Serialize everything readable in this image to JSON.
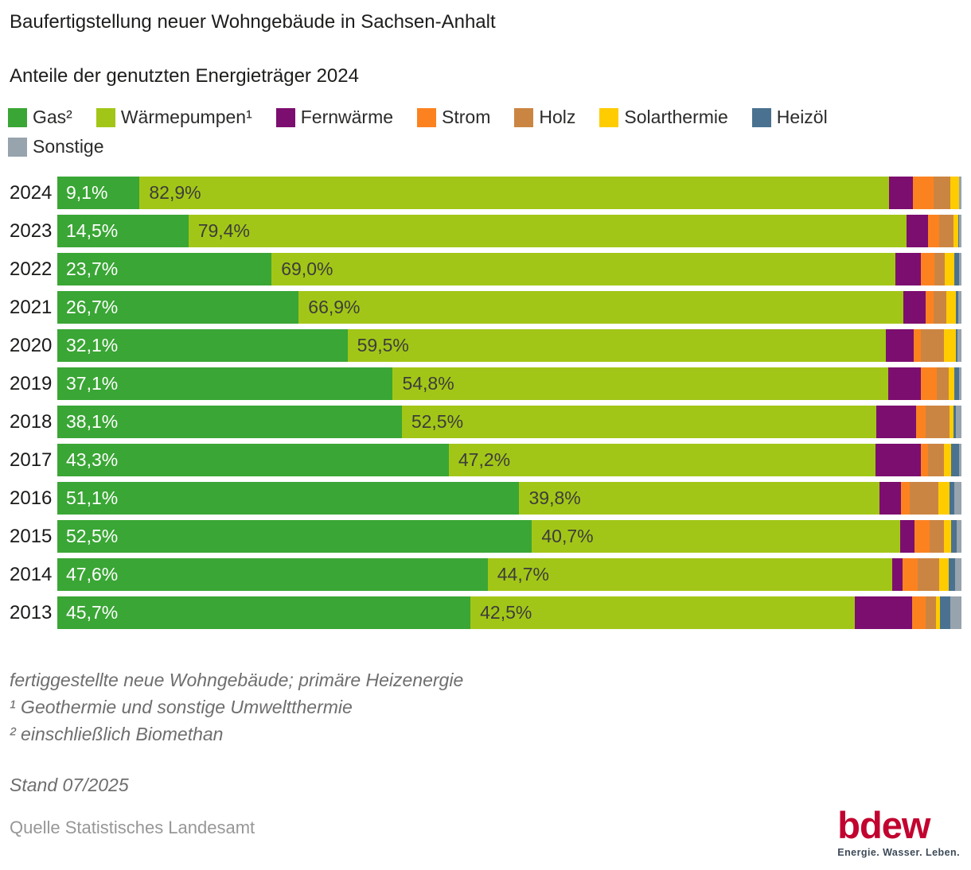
{
  "title": "Baufertigstellung neuer Wohngebäude in Sachsen-Anhalt",
  "subtitle": "Anteile der genutzten Energieträger 2024",
  "legend": [
    {
      "label": "Gas²",
      "color": "#3aa635"
    },
    {
      "label": "Wärmepumpen¹",
      "color": "#a2c617"
    },
    {
      "label": "Fernwärme",
      "color": "#7c0e6f"
    },
    {
      "label": "Strom",
      "color": "#fc8220"
    },
    {
      "label": "Holz",
      "color": "#cb8542"
    },
    {
      "label": "Solarthermie",
      "color": "#ffcc00"
    },
    {
      "label": "Heizöl",
      "color": "#4a7290"
    },
    {
      "label": "Sonstige",
      "color": "#97a3ad"
    }
  ],
  "chart_data": {
    "type": "bar",
    "stacked": true,
    "orientation": "horizontal",
    "unit": "%",
    "xlim": [
      0,
      100
    ],
    "grid": false,
    "legend_position": "top",
    "categories": [
      "2024",
      "2023",
      "2022",
      "2021",
      "2020",
      "2019",
      "2018",
      "2017",
      "2016",
      "2015",
      "2014",
      "2013"
    ],
    "series": [
      {
        "name": "Gas²",
        "color": "#3aa635",
        "values": [
          9.1,
          14.5,
          23.7,
          26.7,
          32.1,
          37.1,
          38.1,
          43.3,
          51.1,
          52.5,
          47.6,
          45.7
        ],
        "labels": [
          "9,1%",
          "14,5%",
          "23,7%",
          "26,7%",
          "32,1%",
          "37,1%",
          "38,1%",
          "43,3%",
          "51,1%",
          "52,5%",
          "47,6%",
          "45,7%"
        ]
      },
      {
        "name": "Wärmepumpen¹",
        "color": "#a2c617",
        "values": [
          82.9,
          79.4,
          69.0,
          66.9,
          59.5,
          54.8,
          52.5,
          47.2,
          39.8,
          40.7,
          44.7,
          42.5
        ],
        "labels": [
          "82,9%",
          "79,4%",
          "69,0%",
          "66,9%",
          "59,5%",
          "54,8%",
          "52,5%",
          "47,2%",
          "39,8%",
          "40,7%",
          "44,7%",
          "42,5%"
        ]
      },
      {
        "name": "Fernwärme",
        "color": "#7c0e6f",
        "values": [
          2.6,
          2.4,
          2.8,
          2.4,
          3.1,
          3.6,
          4.4,
          5.0,
          2.4,
          1.6,
          1.2,
          6.3
        ]
      },
      {
        "name": "Strom",
        "color": "#fc8220",
        "values": [
          2.3,
          1.2,
          1.55,
          0.9,
          0.8,
          1.75,
          1.0,
          0.8,
          0.95,
          1.65,
          1.65,
          1.5
        ]
      },
      {
        "name": "Holz",
        "color": "#cb8542",
        "values": [
          1.9,
          1.6,
          1.1,
          1.4,
          2.6,
          1.3,
          2.65,
          1.8,
          3.2,
          1.6,
          2.4,
          1.2
        ]
      },
      {
        "name": "Solarthermie",
        "color": "#ffcc00",
        "values": [
          0.9,
          0.55,
          1.05,
          1.05,
          1.25,
          0.7,
          0.5,
          0.8,
          1.25,
          0.85,
          1.05,
          0.45
        ]
      },
      {
        "name": "Heizöl",
        "color": "#4a7290",
        "values": [
          0,
          0.1,
          0.5,
          0.3,
          0.25,
          0.45,
          0.25,
          0.8,
          0.55,
          0.6,
          0.7,
          1.1
        ]
      },
      {
        "name": "Sonstige",
        "color": "#97a3ad",
        "values": [
          0.3,
          0.25,
          0.3,
          0.35,
          0.4,
          0.3,
          0.6,
          0.3,
          0.75,
          0.5,
          0.7,
          1.25
        ]
      }
    ]
  },
  "footnotes": [
    "fertiggestellte neue Wohngebäude; primäre Heizenergie",
    "¹ Geothermie und sonstige Umweltthermie",
    "² einschließlich Biomethan"
  ],
  "stand": "Stand 07/2025",
  "quelle": "Quelle Statistisches Landesamt",
  "logo": {
    "text": "bdew",
    "tagline": "Energie. Wasser. Leben."
  }
}
